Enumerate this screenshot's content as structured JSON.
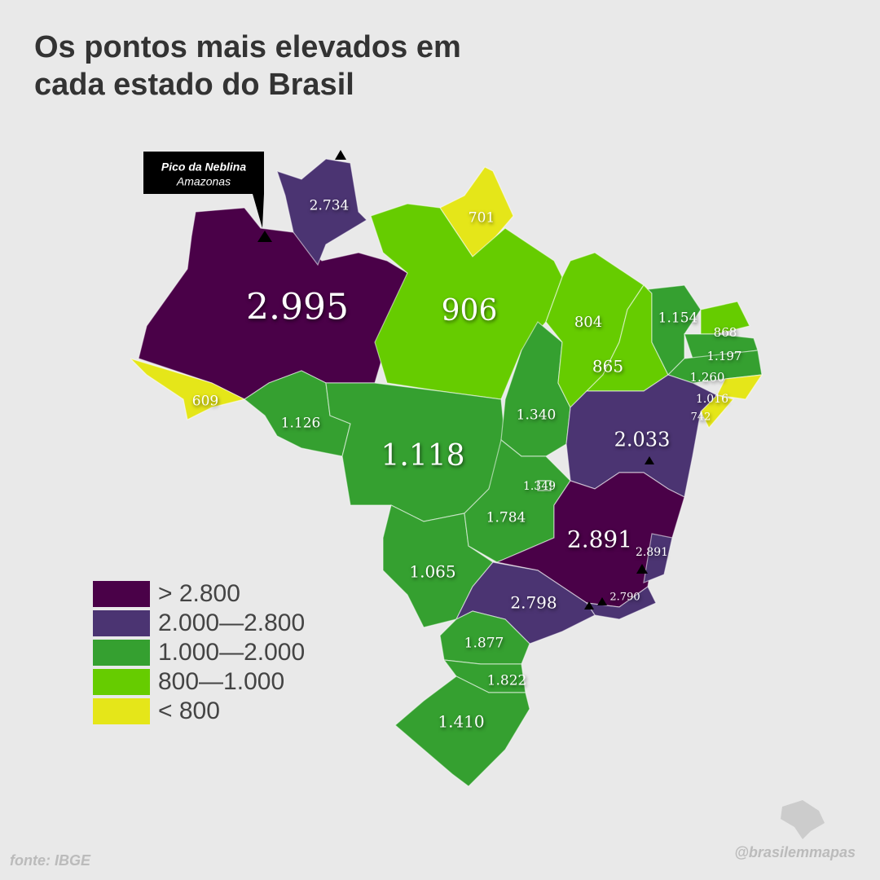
{
  "title": [
    "Os pontos mais elevados em",
    "cada estado do Brasil"
  ],
  "callout": {
    "name": "Pico da Neblina",
    "state": "Amazonas"
  },
  "states": [
    "2.995",
    "2.734",
    "701",
    "906",
    "609",
    "1.126",
    "1.118",
    "1.065",
    "1.340",
    "1.349",
    "1.784",
    "804",
    "865",
    "1.154",
    "868",
    "1.197",
    "1.260",
    "1.016",
    "742",
    "2.033",
    "2.891",
    "2.891",
    "2.798",
    "2.790",
    "1.877",
    "1.822",
    "1.410"
  ],
  "legend": [
    "> 2.800",
    "2.000—2.800",
    "1.000—2.000",
    "800—1.000",
    "< 800"
  ],
  "source": "fonte: IBGE",
  "credit": "@brasilemmapas"
}
